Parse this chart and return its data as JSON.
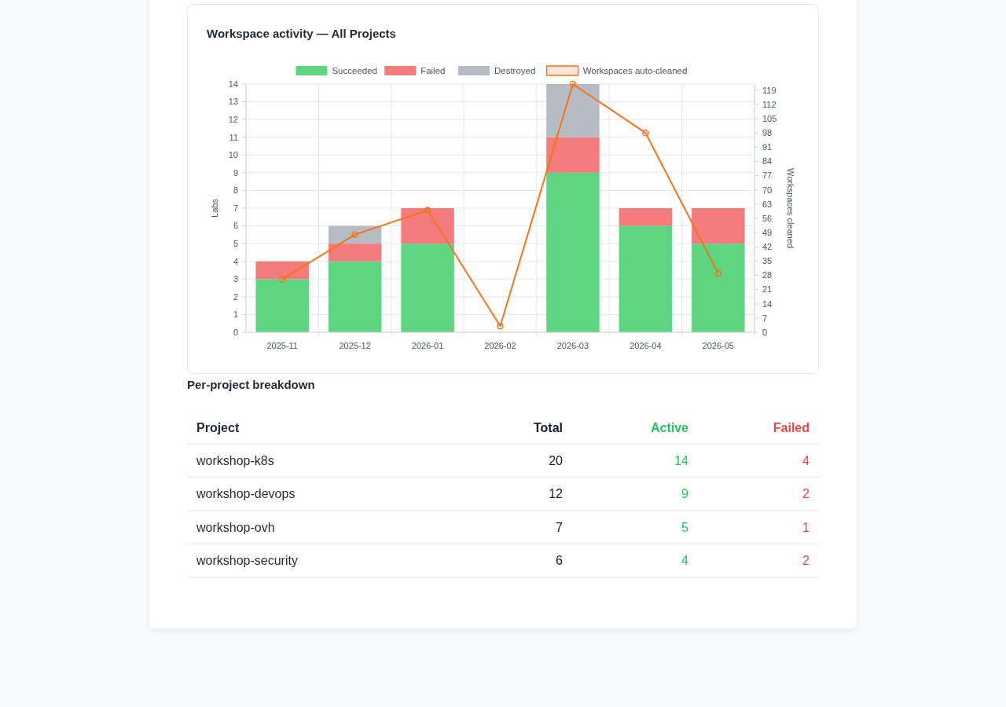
{
  "chart_data": [
    {
      "type": "bar",
      "title": "Workspace activity — All Projects",
      "categories": [
        "2025-11",
        "2025-12",
        "2026-01",
        "2026-02",
        "2026-03",
        "2026-04",
        "2026-05"
      ],
      "stacked": true,
      "series": [
        {
          "name": "Succeeded",
          "color": "#5dd581",
          "values": [
            3,
            4,
            5,
            0,
            9,
            6,
            5
          ]
        },
        {
          "name": "Failed",
          "color": "#f47b7b",
          "values": [
            1,
            1,
            2,
            0,
            2,
            1,
            2
          ]
        },
        {
          "name": "Destroyed",
          "color": "#b7bbc4",
          "values": [
            0,
            1,
            0,
            0,
            3,
            0,
            0
          ]
        },
        {
          "name": "Workspaces auto-cleaned",
          "type": "line",
          "axis": "y2",
          "color": "#f97316",
          "values": [
            26,
            48,
            60,
            3,
            122,
            98,
            29
          ]
        }
      ],
      "ylabel": "Labs",
      "y2label": "Workspaces cleaned",
      "ylim": [
        0,
        14
      ],
      "yticks": [
        0,
        1,
        2,
        3,
        4,
        5,
        6,
        7,
        8,
        9,
        10,
        11,
        12,
        13,
        14
      ],
      "y2lim": [
        0,
        122
      ],
      "y2ticks": [
        0,
        7,
        14,
        21,
        28,
        35,
        42,
        49,
        56,
        63,
        70,
        77,
        84,
        91,
        98,
        105,
        112,
        119
      ],
      "grid": true,
      "legend": "top",
      "marker": "circle"
    },
    {
      "type": "other",
      "title": "Per-project breakdown",
      "xlabel": "Project",
      "categories": [
        "workshop-k8s",
        "workshop-devops",
        "workshop-ovh",
        "workshop-security"
      ],
      "data_labels": true,
      "series": [
        {
          "name": "Total",
          "color": "#111827",
          "values": [
            20,
            12,
            7,
            6
          ]
        },
        {
          "name": "Active",
          "color": "#22c55e",
          "values": [
            14,
            9,
            5,
            4
          ]
        },
        {
          "name": "Failed",
          "color": "#ef4444",
          "values": [
            4,
            2,
            1,
            2
          ]
        }
      ]
    }
  ]
}
